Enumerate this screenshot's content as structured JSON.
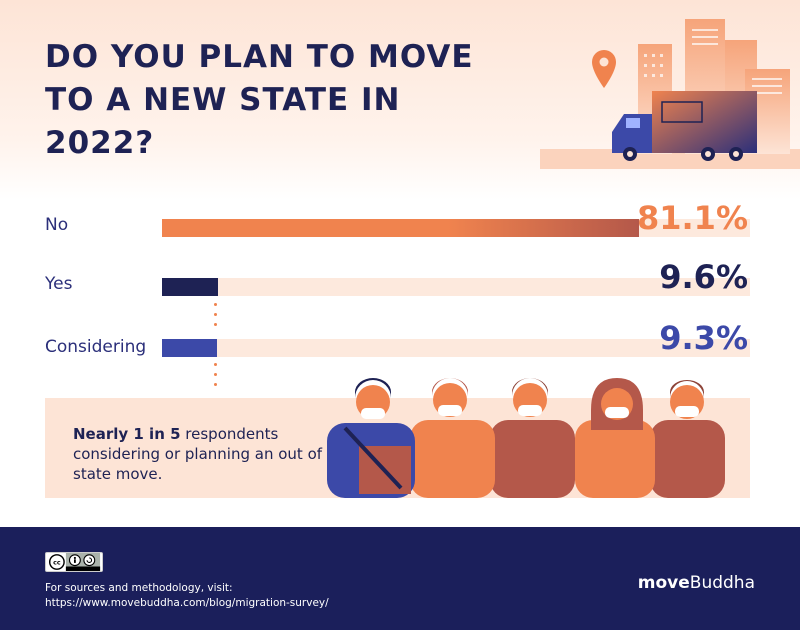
{
  "title": "DO YOU PLAN TO MOVE TO A NEW STATE IN 2022?",
  "chart_data": {
    "type": "bar",
    "orientation": "horizontal",
    "categories": [
      "No",
      "Yes",
      "Considering"
    ],
    "values": [
      81.1,
      9.6,
      9.3
    ],
    "value_labels": [
      "81.1%",
      "9.6%",
      "9.3%"
    ],
    "xlim": [
      0,
      100
    ],
    "colors": [
      "#f0834e",
      "#1e2254",
      "#3c49a8"
    ],
    "label_colors": [
      "#f0834e",
      "#1e2254",
      "#3c49a8"
    ],
    "track_color": "#fde9dd"
  },
  "callout": {
    "bold": "Nearly 1 in 5",
    "rest": " respondents considering or planning an out of state move."
  },
  "footer": {
    "sources_line1": "For sources and methodology, visit:",
    "sources_line2": "https://www.movebuddha.com/blog/migration-survey/",
    "brand_bold": "move",
    "brand_rest": "Buddha",
    "license_icons": "cc-by-sa-icon"
  },
  "colors": {
    "navy": "#1b1f5b",
    "orange": "#f0834e",
    "peach": "#fde4d6"
  }
}
